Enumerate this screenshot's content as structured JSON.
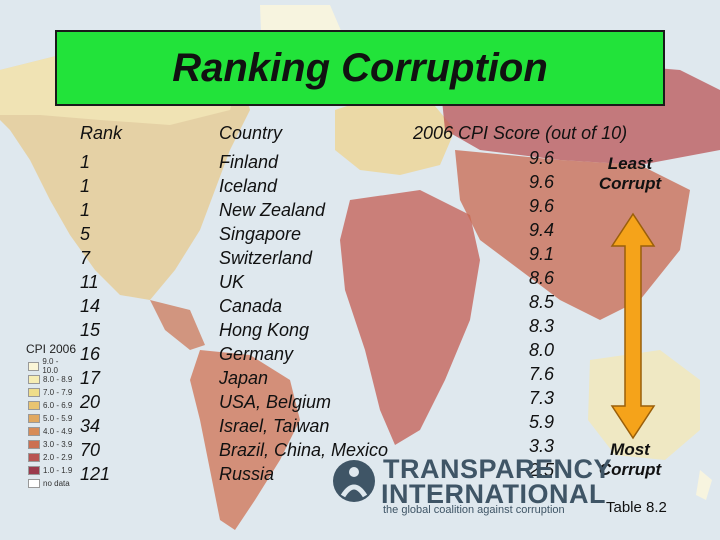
{
  "title": "Ranking Corruption",
  "headers": {
    "rank": "Rank",
    "country": "Country",
    "score": "2006 CPI Score (out of 10)"
  },
  "rows": [
    {
      "rank": "1",
      "country": "Finland",
      "score": "9.6"
    },
    {
      "rank": "1",
      "country": "Iceland",
      "score": "9.6"
    },
    {
      "rank": "1",
      "country": "New Zealand",
      "score": "9.6"
    },
    {
      "rank": "5",
      "country": "Singapore",
      "score": "9.4"
    },
    {
      "rank": "7",
      "country": "Switzerland",
      "score": "9.1"
    },
    {
      "rank": "11",
      "country": "UK",
      "score": "8.6"
    },
    {
      "rank": "14",
      "country": "Canada",
      "score": "8.5"
    },
    {
      "rank": "15",
      "country": "Hong Kong",
      "score": "8.3"
    },
    {
      "rank": "16",
      "country": "Germany",
      "score": "8.0"
    },
    {
      "rank": "17",
      "country": "Japan",
      "score": "7.6"
    },
    {
      "rank": "20",
      "country": "USA, Belgium",
      "score": "7.3"
    },
    {
      "rank": "34",
      "country": "Israel, Taiwan",
      "score": "5.9"
    },
    {
      "rank": "70",
      "country": "Brazil, China, Mexico",
      "score": "3.3"
    },
    {
      "rank": "121",
      "country": "Russia",
      "score": "2.5"
    }
  ],
  "least_label": [
    "Least",
    "Corrupt"
  ],
  "most_label": [
    "Most",
    "Corrupt"
  ],
  "legend": {
    "title": "CPI 2006",
    "items": [
      {
        "label": "9.0 - 10.0",
        "color": "#fbf6d8"
      },
      {
        "label": "8.0 - 8.9",
        "color": "#f6edb4"
      },
      {
        "label": "7.0 - 7.9",
        "color": "#efdd8a"
      },
      {
        "label": "6.0 - 6.9",
        "color": "#e9c470"
      },
      {
        "label": "5.0 - 5.9",
        "color": "#e0a860"
      },
      {
        "label": "4.0 - 4.9",
        "color": "#d78c58"
      },
      {
        "label": "3.0 - 3.9",
        "color": "#cc7052"
      },
      {
        "label": "2.0 - 2.9",
        "color": "#b85452"
      },
      {
        "label": "1.0 - 1.9",
        "color": "#9b3a4c"
      },
      {
        "label": "no data",
        "color": "#ffffff"
      }
    ]
  },
  "logo": {
    "line1": "TRANSPARENCY",
    "line2": "INTERNATIONAL",
    "tagline": "the global coalition against corruption"
  },
  "table_label": "Table 8.2",
  "colors": {
    "title_bg": "#22e33a",
    "arrow": "#f5a31a",
    "ocean": "#dfe8ee"
  }
}
